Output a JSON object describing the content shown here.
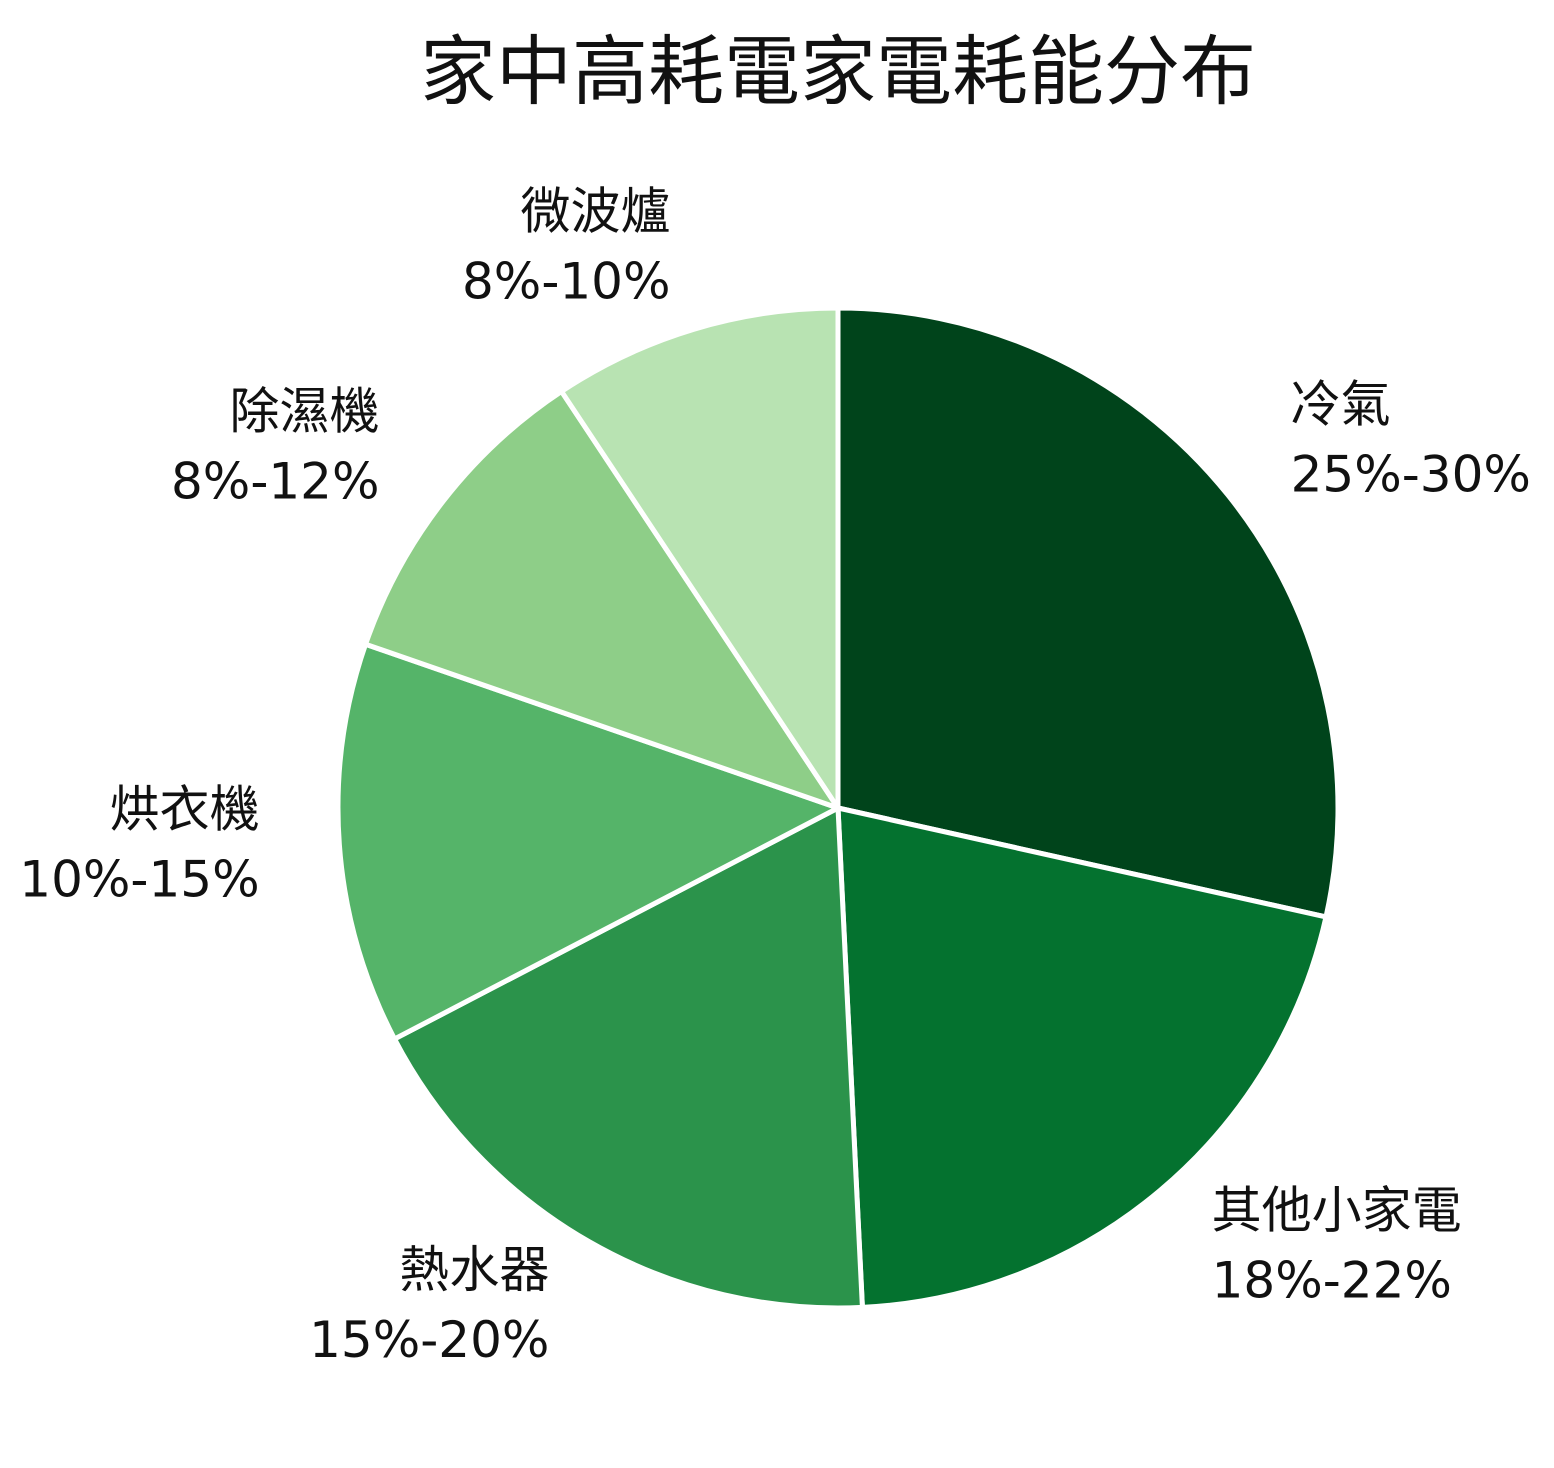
{
  "chart_data": {
    "type": "pie",
    "title": "家中高耗電家電耗能分布",
    "slices": [
      {
        "name": "冷氣",
        "range_label": "25%-30%",
        "value": 27.5,
        "color": "#00441b"
      },
      {
        "name": "其他小家電",
        "range_label": "18%-22%",
        "value": 20,
        "color": "#04722f"
      },
      {
        "name": "熱水器",
        "range_label": "15%-20%",
        "value": 17.5,
        "color": "#2b934b"
      },
      {
        "name": "烘衣機",
        "range_label": "10%-15%",
        "value": 12.5,
        "color": "#55b469"
      },
      {
        "name": "除濕機",
        "range_label": "8%-12%",
        "value": 10,
        "color": "#8ece88"
      },
      {
        "name": "微波爐",
        "range_label": "8%-10%",
        "value": 9,
        "color": "#b8e3b2"
      }
    ],
    "start_angle": "12 o'clock",
    "direction": "clockwise",
    "legend": "none",
    "slice_border_color": "#ffffff"
  }
}
